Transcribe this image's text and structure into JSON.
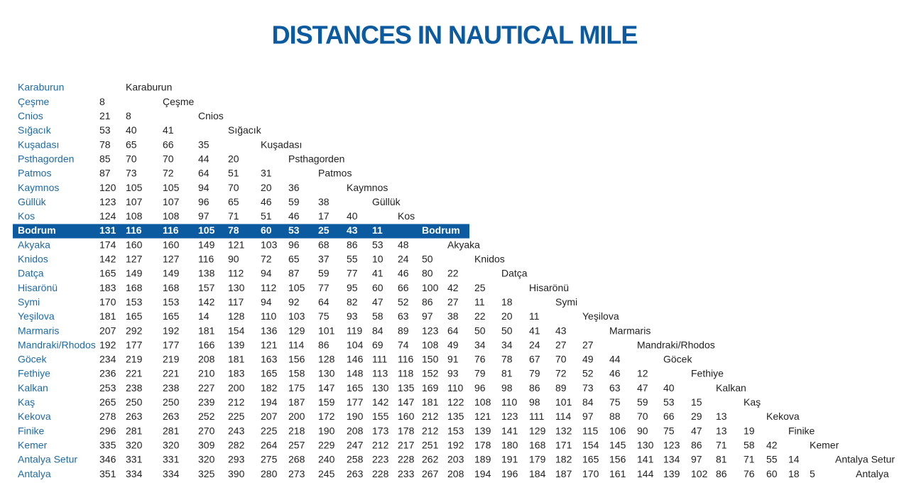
{
  "title": "DISTANCES IN NAUTICAL MILE",
  "table": {
    "rows": [
      {
        "name": "Karaburun",
        "distances": []
      },
      {
        "name": "Çeşme",
        "distances": [
          8
        ]
      },
      {
        "name": "Cnios",
        "distances": [
          21,
          8
        ]
      },
      {
        "name": "Sığacık",
        "distances": [
          53,
          40,
          41
        ]
      },
      {
        "name": "Kuşadası",
        "distances": [
          78,
          65,
          66,
          35
        ]
      },
      {
        "name": "Psthagorden",
        "distances": [
          85,
          70,
          70,
          44,
          20
        ]
      },
      {
        "name": "Patmos",
        "distances": [
          87,
          73,
          72,
          64,
          51,
          31
        ]
      },
      {
        "name": "Kaymnos",
        "distances": [
          120,
          105,
          105,
          94,
          70,
          20,
          36
        ]
      },
      {
        "name": "Güllük",
        "distances": [
          123,
          107,
          107,
          96,
          65,
          46,
          59,
          38
        ]
      },
      {
        "name": "Kos",
        "distances": [
          124,
          108,
          108,
          97,
          71,
          51,
          46,
          17,
          40
        ]
      },
      {
        "name": "Bodrum",
        "distances": [
          131,
          116,
          116,
          105,
          78,
          60,
          53,
          25,
          43,
          11
        ]
      },
      {
        "name": "Akyaka",
        "distances": [
          174,
          160,
          160,
          149,
          121,
          103,
          96,
          68,
          86,
          53,
          48
        ]
      },
      {
        "name": "Knidos",
        "distances": [
          142,
          127,
          127,
          116,
          90,
          72,
          65,
          37,
          55,
          10,
          24,
          50
        ]
      },
      {
        "name": "Datça",
        "distances": [
          165,
          149,
          149,
          138,
          112,
          94,
          87,
          59,
          77,
          41,
          46,
          80,
          22
        ]
      },
      {
        "name": "Hisarönü",
        "distances": [
          183,
          168,
          168,
          157,
          130,
          112,
          105,
          77,
          95,
          60,
          66,
          100,
          42,
          25
        ]
      },
      {
        "name": "Symi",
        "distances": [
          170,
          153,
          153,
          142,
          117,
          94,
          92,
          64,
          82,
          47,
          52,
          86,
          27,
          11,
          18
        ]
      },
      {
        "name": "Yeşilova",
        "distances": [
          181,
          165,
          165,
          14,
          128,
          110,
          103,
          75,
          93,
          58,
          63,
          97,
          38,
          22,
          20,
          11
        ]
      },
      {
        "name": "Marmaris",
        "distances": [
          207,
          292,
          192,
          181,
          154,
          136,
          129,
          101,
          119,
          84,
          89,
          123,
          64,
          50,
          50,
          41,
          43
        ]
      },
      {
        "name": "Mandraki/Rhodos",
        "distances": [
          192,
          177,
          177,
          166,
          139,
          121,
          114,
          86,
          104,
          69,
          74,
          108,
          49,
          34,
          34,
          24,
          27,
          27
        ]
      },
      {
        "name": "Göcek",
        "distances": [
          234,
          219,
          219,
          208,
          181,
          163,
          156,
          128,
          146,
          111,
          116,
          150,
          91,
          76,
          78,
          67,
          70,
          49,
          44
        ]
      },
      {
        "name": "Fethiye",
        "distances": [
          236,
          221,
          221,
          210,
          183,
          165,
          158,
          130,
          148,
          113,
          118,
          152,
          93,
          79,
          81,
          79,
          72,
          52,
          46,
          12
        ]
      },
      {
        "name": "Kalkan",
        "distances": [
          253,
          238,
          238,
          227,
          200,
          182,
          175,
          147,
          165,
          130,
          135,
          169,
          110,
          96,
          98,
          86,
          89,
          73,
          63,
          47,
          40
        ]
      },
      {
        "name": "Kaş",
        "distances": [
          265,
          250,
          250,
          239,
          212,
          194,
          187,
          159,
          177,
          142,
          147,
          181,
          122,
          108,
          110,
          98,
          101,
          84,
          75,
          59,
          53,
          15
        ]
      },
      {
        "name": "Kekova",
        "distances": [
          278,
          263,
          263,
          252,
          225,
          207,
          200,
          172,
          190,
          155,
          160,
          212,
          135,
          121,
          123,
          111,
          114,
          97,
          88,
          70,
          66,
          29,
          13
        ]
      },
      {
        "name": "Finike",
        "distances": [
          296,
          281,
          281,
          270,
          243,
          225,
          218,
          190,
          208,
          173,
          178,
          212,
          153,
          139,
          141,
          129,
          132,
          115,
          106,
          90,
          75,
          47,
          13,
          19
        ]
      },
      {
        "name": "Kemer",
        "distances": [
          335,
          320,
          320,
          309,
          282,
          264,
          257,
          229,
          247,
          212,
          217,
          251,
          192,
          178,
          180,
          168,
          171,
          154,
          145,
          130,
          123,
          86,
          71,
          58,
          42
        ]
      },
      {
        "name": "Antalya Setur",
        "distances": [
          346,
          331,
          331,
          320,
          293,
          275,
          268,
          240,
          258,
          223,
          228,
          262,
          203,
          189,
          191,
          179,
          182,
          165,
          156,
          141,
          134,
          97,
          81,
          71,
          55,
          14
        ]
      },
      {
        "name": "Antalya",
        "distances": [
          351,
          334,
          334,
          325,
          390,
          280,
          273,
          245,
          263,
          228,
          233,
          267,
          208,
          194,
          196,
          184,
          187,
          170,
          161,
          144,
          139,
          102,
          86,
          76,
          60,
          18,
          5
        ]
      }
    ]
  }
}
